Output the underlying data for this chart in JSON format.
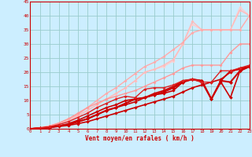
{
  "xlabel": "Vent moyen/en rafales ( km/h )",
  "bg_color": "#cceeff",
  "grid_color": "#99cccc",
  "x_max": 23,
  "y_max": 45,
  "y_ticks": [
    0,
    5,
    10,
    15,
    20,
    25,
    30,
    35,
    40,
    45
  ],
  "lines": [
    {
      "x": [
        0,
        1,
        2,
        3,
        4,
        5,
        6,
        7,
        8,
        9,
        10,
        11,
        12,
        13,
        14,
        15,
        16,
        17,
        18,
        19,
        20,
        21,
        22,
        23
      ],
      "y": [
        0,
        0.3,
        1.0,
        2.0,
        3.0,
        4.5,
        6.5,
        8.5,
        10.5,
        12.5,
        14.5,
        17.0,
        20.0,
        21.0,
        22.0,
        24.0,
        30.0,
        37.0,
        35.0,
        35.0,
        35.0,
        35.0,
        43.0,
        40.0
      ],
      "color": "#ffcccc",
      "lw": 1.0,
      "marker": "D",
      "ms": 2.0
    },
    {
      "x": [
        0,
        1,
        2,
        3,
        4,
        5,
        6,
        7,
        8,
        9,
        10,
        11,
        12,
        13,
        14,
        15,
        16,
        17,
        18,
        19,
        20,
        21,
        22,
        23
      ],
      "y": [
        0,
        0.3,
        1.0,
        2.0,
        3.0,
        4.5,
        6.5,
        8.5,
        10.5,
        12.5,
        14.5,
        17.0,
        20.0,
        21.0,
        22.5,
        24.5,
        30.0,
        38.0,
        35.0,
        35.0,
        35.0,
        35.0,
        42.0,
        40.0
      ],
      "color": "#ffbbbb",
      "lw": 1.0,
      "marker": "D",
      "ms": 2.0
    },
    {
      "x": [
        0,
        1,
        2,
        3,
        4,
        5,
        6,
        7,
        8,
        9,
        10,
        11,
        12,
        13,
        14,
        15,
        16,
        17,
        18,
        19,
        20,
        21,
        22,
        23
      ],
      "y": [
        0,
        0.3,
        1.0,
        2.0,
        3.5,
        5.0,
        7.5,
        10.0,
        12.5,
        14.5,
        17.0,
        19.5,
        22.0,
        23.5,
        25.5,
        28.0,
        30.5,
        34.0,
        35.0,
        35.0,
        35.0,
        35.0,
        35.0,
        40.0
      ],
      "color": "#ffaaaa",
      "lw": 1.0,
      "marker": "D",
      "ms": 2.0
    },
    {
      "x": [
        0,
        1,
        2,
        3,
        4,
        5,
        6,
        7,
        8,
        9,
        10,
        11,
        12,
        13,
        14,
        15,
        16,
        17,
        18,
        19,
        20,
        21,
        22,
        23
      ],
      "y": [
        0,
        0.3,
        0.8,
        2.0,
        3.5,
        5.5,
        7.5,
        9.0,
        10.5,
        11.5,
        12.5,
        13.5,
        15.0,
        16.5,
        18.0,
        19.5,
        21.5,
        22.5,
        22.5,
        22.5,
        22.5,
        27.0,
        30.0,
        30.0
      ],
      "color": "#ff9999",
      "lw": 1.0,
      "marker": "D",
      "ms": 2.0
    },
    {
      "x": [
        0,
        1,
        2,
        3,
        4,
        5,
        6,
        7,
        8,
        9,
        10,
        11,
        12,
        13,
        14,
        15,
        16,
        17,
        18,
        19,
        20,
        21,
        22,
        23
      ],
      "y": [
        0,
        0.2,
        0.5,
        1.0,
        1.8,
        3.0,
        4.5,
        6.0,
        7.5,
        8.5,
        10.0,
        10.5,
        11.0,
        12.5,
        13.5,
        15.0,
        17.0,
        17.5,
        16.5,
        10.5,
        17.0,
        20.5,
        21.0,
        22.0
      ],
      "color": "#cc0000",
      "lw": 1.2,
      "marker": "D",
      "ms": 2.2
    },
    {
      "x": [
        0,
        1,
        2,
        3,
        4,
        5,
        6,
        7,
        8,
        9,
        10,
        11,
        12,
        13,
        14,
        15,
        16,
        17,
        18,
        19,
        20,
        21,
        22,
        23
      ],
      "y": [
        0,
        0.2,
        0.5,
        1.0,
        1.5,
        2.5,
        3.5,
        5.0,
        6.5,
        7.5,
        8.5,
        9.5,
        11.0,
        12.0,
        12.5,
        13.5,
        16.5,
        17.5,
        17.0,
        10.5,
        16.5,
        11.0,
        20.5,
        22.0
      ],
      "color": "#cc0000",
      "lw": 1.2,
      "marker": "D",
      "ms": 2.2
    },
    {
      "x": [
        0,
        1,
        2,
        3,
        4,
        5,
        6,
        7,
        8,
        9,
        10,
        11,
        12,
        13,
        14,
        15,
        16,
        17,
        18,
        19,
        20,
        21,
        22,
        23
      ],
      "y": [
        0,
        0.2,
        0.4,
        0.8,
        1.2,
        1.8,
        2.5,
        3.5,
        4.5,
        5.5,
        6.5,
        7.5,
        8.5,
        9.5,
        10.5,
        11.5,
        13.0,
        14.5,
        15.5,
        16.5,
        17.5,
        20.0,
        21.5,
        22.0
      ],
      "color": "#cc0000",
      "lw": 1.2,
      "marker": "D",
      "ms": 2.2
    },
    {
      "x": [
        0,
        1,
        2,
        3,
        4,
        5,
        6,
        7,
        8,
        9,
        10,
        11,
        12,
        13,
        14,
        15,
        16,
        17,
        18,
        19,
        20,
        21,
        22,
        23
      ],
      "y": [
        0,
        0.2,
        0.5,
        1.0,
        1.5,
        2.5,
        3.5,
        5.0,
        6.5,
        7.5,
        9.0,
        10.5,
        11.0,
        12.0,
        13.0,
        14.5,
        16.5,
        17.5,
        17.0,
        10.5,
        17.0,
        16.5,
        20.5,
        22.0
      ],
      "color": "#cc0000",
      "lw": 1.5,
      "marker": "D",
      "ms": 2.5
    },
    {
      "x": [
        0,
        1,
        2,
        3,
        4,
        5,
        6,
        7,
        8,
        9,
        10,
        11,
        12,
        13,
        14,
        15,
        16,
        17,
        18,
        19,
        20,
        21,
        22,
        23
      ],
      "y": [
        0,
        0.3,
        0.7,
        1.5,
        2.5,
        4.0,
        5.5,
        7.5,
        9.0,
        10.5,
        11.5,
        11.0,
        14.0,
        14.5,
        14.5,
        15.5,
        17.0,
        17.5,
        16.5,
        16.5,
        20.5,
        20.5,
        21.5,
        22.5
      ],
      "color": "#dd2222",
      "lw": 1.0,
      "marker": "D",
      "ms": 2.0
    }
  ]
}
